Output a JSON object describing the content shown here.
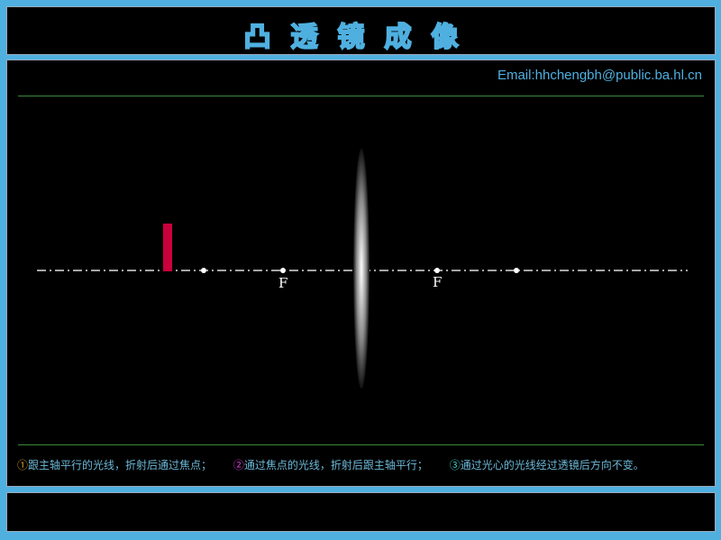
{
  "header": {
    "title": "凸透镜成像"
  },
  "main": {
    "email": "Email:hhchengbh@public.ba.hl.cn",
    "focus_labels": [
      "F",
      "F"
    ],
    "rules": [
      {
        "marker": "①",
        "text": "跟主轴平行的光线，折射后通过焦点；",
        "color": "#e0a020"
      },
      {
        "marker": "②",
        "text": "通过焦点的光线，折射后跟主轴平行；",
        "color": "#e040e0"
      },
      {
        "marker": "③",
        "text": "通过光心的光线经过透镜后方向不变。",
        "color": "#40d0d0"
      }
    ],
    "object_color": "#c8003c"
  }
}
